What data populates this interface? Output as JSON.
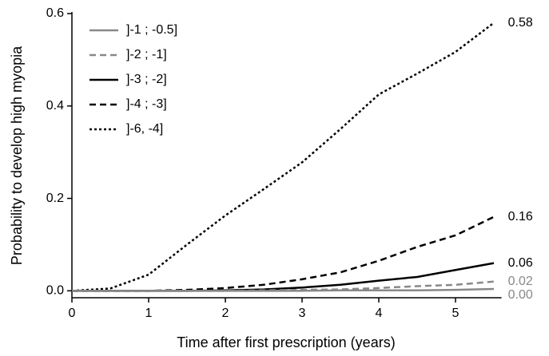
{
  "chart_data": {
    "type": "line",
    "x_label": "Time after first prescription (years)",
    "y_label": "Probability to develop high myopia",
    "x": [
      0,
      0.5,
      1,
      1.5,
      2,
      2.5,
      3,
      3.5,
      4,
      4.5,
      5,
      5.5
    ],
    "series": [
      {
        "name": "]-1 ; -0.5]",
        "color": "#888888",
        "dash": "solid",
        "end_label": "0.00",
        "values": [
          0,
          0,
          0,
          0,
          0,
          0,
          0,
          0.001,
          0.001,
          0.001,
          0.002,
          0.004
        ]
      },
      {
        "name": "]-2 ; -1]",
        "color": "#888888",
        "dash": "dashed",
        "end_label": "0.02",
        "values": [
          0,
          0,
          0,
          0,
          0,
          0.001,
          0.002,
          0.003,
          0.006,
          0.01,
          0.013,
          0.02
        ]
      },
      {
        "name": "]-3 ; -2]",
        "color": "#000000",
        "dash": "solid",
        "end_label": "0.06",
        "values": [
          0,
          0,
          0,
          0,
          0.001,
          0.003,
          0.007,
          0.013,
          0.022,
          0.03,
          0.045,
          0.06
        ]
      },
      {
        "name": "]-4 ; -3]",
        "color": "#000000",
        "dash": "dashed",
        "end_label": "0.16",
        "values": [
          0,
          0,
          0,
          0.002,
          0.006,
          0.013,
          0.025,
          0.04,
          0.065,
          0.095,
          0.12,
          0.16
        ]
      },
      {
        "name": "]-6, -4]",
        "color": "#000000",
        "dash": "dotted",
        "end_label": "0.58",
        "values": [
          0,
          0.005,
          0.035,
          0.1,
          0.163,
          0.22,
          0.278,
          0.35,
          0.425,
          0.47,
          0.517,
          0.58
        ]
      }
    ],
    "xlim": [
      0,
      5.6
    ],
    "xticks": [
      0,
      1,
      2,
      3,
      4,
      5
    ],
    "ylim": [
      -0.015,
      0.6
    ],
    "yticks": [
      {
        "value": 0,
        "label": "0.0"
      },
      0.2,
      0.4,
      0.6
    ],
    "legend": "top-left",
    "grid": false
  }
}
